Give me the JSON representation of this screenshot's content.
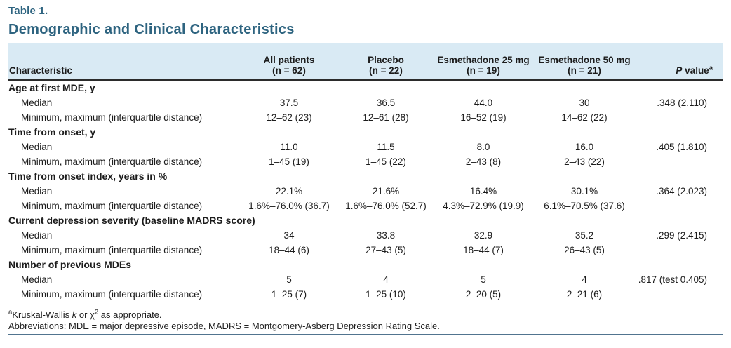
{
  "page": {
    "table_label": "Table 1.",
    "title": "Demographic and Clinical Characteristics"
  },
  "colors": {
    "title_blue": "#2e6480",
    "header_bg": "#d9eaf4",
    "rule_blue": "#51748f",
    "header_border": "#2b2b2b"
  },
  "table": {
    "characteristic_header": "Characteristic",
    "columns": [
      {
        "line1": "All patients",
        "line2": "(n = 62)"
      },
      {
        "line1": "Placebo",
        "line2": "(n = 22)"
      },
      {
        "line1": "Esmethadone 25 mg",
        "line2": "(n = 19)"
      },
      {
        "line1": "Esmethadone 50 mg",
        "line2": "(n = 21)"
      }
    ],
    "p_value_header": {
      "italic": "P",
      "rest": " value",
      "sup": "a"
    },
    "rows": [
      {
        "label": "Age at first MDE, y",
        "section": true,
        "values": [
          "",
          "",
          "",
          "",
          ""
        ]
      },
      {
        "label": "Median",
        "section": false,
        "values": [
          "37.5",
          "36.5",
          "44.0",
          "30",
          ".348 (2.110)"
        ]
      },
      {
        "label": "Minimum, maximum (interquartile distance)",
        "section": false,
        "values": [
          "12–62 (23)",
          "12–61 (28)",
          "16–52 (19)",
          "14–62 (22)",
          ""
        ]
      },
      {
        "label": "Time from onset, y",
        "section": true,
        "values": [
          "",
          "",
          "",
          "",
          ""
        ]
      },
      {
        "label": "Median",
        "section": false,
        "values": [
          "11.0",
          "11.5",
          "8.0",
          "16.0",
          ".405 (1.810)"
        ]
      },
      {
        "label": "Minimum, maximum (interquartile distance)",
        "section": false,
        "values": [
          "1–45 (19)",
          "1–45 (22)",
          "2–43 (8)",
          "2–43 (22)",
          ""
        ]
      },
      {
        "label": "Time from onset index, years in %",
        "section": true,
        "values": [
          "",
          "",
          "",
          "",
          ""
        ]
      },
      {
        "label": "Median",
        "section": false,
        "values": [
          "22.1%",
          "21.6%",
          "16.4%",
          "30.1%",
          ".364 (2.023)"
        ]
      },
      {
        "label": "Minimum, maximum (interquartile distance)",
        "section": false,
        "values": [
          "1.6%–76.0% (36.7)",
          "1.6%–76.0% (52.7)",
          "4.3%–72.9% (19.9)",
          "6.1%–70.5% (37.6)",
          ""
        ]
      },
      {
        "label": "Current depression severity (baseline MADRS score)",
        "section": true,
        "values": [
          "",
          "",
          "",
          "",
          ""
        ]
      },
      {
        "label": "Median",
        "section": false,
        "values": [
          "34",
          "33.8",
          "32.9",
          "35.2",
          ".299 (2.415)"
        ]
      },
      {
        "label": "Minimum, maximum (interquartile distance)",
        "section": false,
        "values": [
          "18–44 (6)",
          "27–43 (5)",
          "18–44 (7)",
          "26–43 (5)",
          ""
        ]
      },
      {
        "label": "Number of previous MDEs",
        "section": true,
        "values": [
          "",
          "",
          "",
          "",
          ""
        ]
      },
      {
        "label": "Median",
        "section": false,
        "values": [
          "5",
          "4",
          "5",
          "4",
          ".817 (test 0.405)"
        ]
      },
      {
        "label": "Minimum, maximum (interquartile distance)",
        "section": false,
        "values": [
          "1–25 (7)",
          "1–25 (10)",
          "2–20 (5)",
          "2–21 (6)",
          ""
        ]
      }
    ]
  },
  "footnotes": {
    "a": {
      "sup": "a",
      "pre": "Kruskal-Wallis ",
      "italic": "k",
      "mid": " or χ",
      "sup2": "2",
      "post": " as appropriate."
    },
    "abbreviations": "Abbreviations: MDE = major depressive episode, MADRS = Montgomery-Asberg Depression Rating Scale."
  }
}
